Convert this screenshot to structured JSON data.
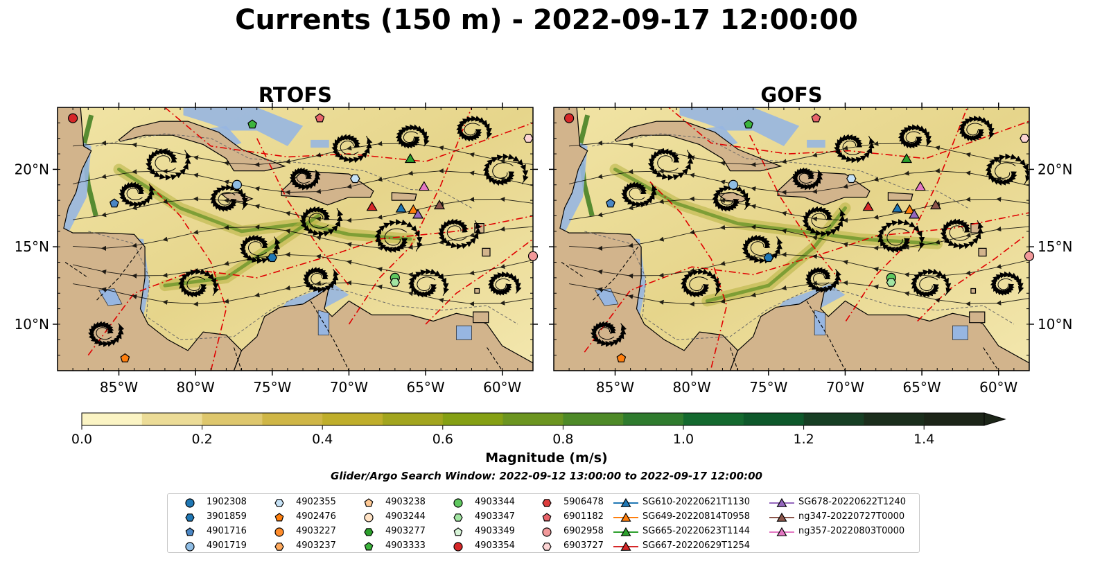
{
  "title": "Currents (150 m) - 2022-09-17 12:00:00",
  "panels": [
    {
      "name": "RTOFS"
    },
    {
      "name": "GOFS"
    }
  ],
  "map_axes": {
    "lon_ticks": [
      "85°W",
      "80°W",
      "75°W",
      "70°W",
      "65°W",
      "60°W"
    ],
    "lon_values": [
      -85,
      -80,
      -75,
      -70,
      -65,
      -60
    ],
    "lat_ticks": [
      "20°N",
      "15°N",
      "10°N"
    ],
    "lat_values": [
      20,
      15,
      10
    ],
    "lon_range": [
      -89,
      -58
    ],
    "lat_range": [
      7,
      24
    ]
  },
  "colors": {
    "land": "#d2b48c",
    "lakes": "#97b6e1",
    "eez": "#e00000",
    "streamline": "#000000"
  },
  "colorbar": {
    "label": "Magnitude (m/s)",
    "ticks": [
      "0.0",
      "0.2",
      "0.4",
      "0.6",
      "0.8",
      "1.0",
      "1.2",
      "1.4"
    ],
    "tick_values": [
      0,
      0.2,
      0.4,
      0.6,
      0.8,
      1.0,
      1.2,
      1.4
    ],
    "range": [
      0,
      1.5
    ],
    "extend": "max",
    "colors": [
      "#fbf4c4",
      "#ecdc97",
      "#dec76d",
      "#cfb646",
      "#bfae2b",
      "#a2a51e",
      "#85a014",
      "#6c9520",
      "#4e8a28",
      "#2f7b2e",
      "#14692f",
      "#0e582b",
      "#173f24",
      "#1b2e1c",
      "#1c2518"
    ]
  },
  "search_window": "Glider/Argo Search Window: 2022-09-12 13:00:00 to 2022-09-17 12:00:00",
  "chart_data": {
    "type": "map",
    "variable": "Currents (150 m)",
    "panels": [
      "RTOFS",
      "GOFS"
    ],
    "platforms": [
      {
        "id": "1902308",
        "marker": "circle",
        "color": "#1f77b4",
        "lon": null,
        "lat": null
      },
      {
        "id": "3901859",
        "marker": "hexagon",
        "color": "#1f77b4",
        "lon": -75.0,
        "lat": 14.3
      },
      {
        "id": "4901716",
        "marker": "pentagon",
        "color": "#4a86c4",
        "lon": -85.3,
        "lat": 17.8
      },
      {
        "id": "4901719",
        "marker": "circle",
        "color": "#8fbde5",
        "lon": -77.3,
        "lat": 19.0
      },
      {
        "id": "4902355",
        "marker": "hexagon",
        "color": "#c6e2f6",
        "lon": -69.6,
        "lat": 19.4
      },
      {
        "id": "4902476",
        "marker": "pentagon",
        "color": "#ff7f0e",
        "lon": -84.6,
        "lat": 7.8
      },
      {
        "id": "4903227",
        "marker": "circle",
        "color": "#ff8c2b",
        "lon": null,
        "lat": null
      },
      {
        "id": "4903237",
        "marker": "hexagon",
        "color": "#ffa95c",
        "lon": null,
        "lat": null
      },
      {
        "id": "4903238",
        "marker": "pentagon",
        "color": "#ffc994",
        "lon": null,
        "lat": null
      },
      {
        "id": "4903244",
        "marker": "circle",
        "color": "#ffe2c4",
        "lon": null,
        "lat": null
      },
      {
        "id": "4903277",
        "marker": "hexagon",
        "color": "#2ca02c",
        "lon": null,
        "lat": null
      },
      {
        "id": "4903333",
        "marker": "pentagon",
        "color": "#3cb43c",
        "lon": -76.3,
        "lat": 22.9
      },
      {
        "id": "4903344",
        "marker": "circle",
        "color": "#5fc85f",
        "lon": -67.0,
        "lat": 13.0
      },
      {
        "id": "4903347",
        "marker": "hexagon",
        "color": "#a2e5a2",
        "lon": -67.0,
        "lat": 12.7
      },
      {
        "id": "4903349",
        "marker": "pentagon",
        "color": "#d8f5d8",
        "lon": null,
        "lat": null
      },
      {
        "id": "4903354",
        "marker": "circle",
        "color": "#d62728",
        "lon": -88.0,
        "lat": 23.3
      },
      {
        "id": "5906478",
        "marker": "hexagon",
        "color": "#dc3c3c",
        "lon": null,
        "lat": null
      },
      {
        "id": "6901182",
        "marker": "pentagon",
        "color": "#e8646a",
        "lon": -71.9,
        "lat": 23.3
      },
      {
        "id": "6902958",
        "marker": "circle",
        "color": "#f2999a",
        "lon": -58.0,
        "lat": 14.4
      },
      {
        "id": "6903727",
        "marker": "hexagon",
        "color": "#fcd4d4",
        "lon": -58.3,
        "lat": 22.0
      },
      {
        "id": "SG610-20220621T1130",
        "marker": "triangle",
        "color": "#1f77b4",
        "lon": -66.6,
        "lat": 17.5
      },
      {
        "id": "SG649-20220814T0958",
        "marker": "triangle",
        "color": "#ff7f0e",
        "lon": -65.8,
        "lat": 17.4
      },
      {
        "id": "SG665-20220623T1144",
        "marker": "triangle",
        "color": "#2ca02c",
        "lon": -66.0,
        "lat": 20.7
      },
      {
        "id": "SG667-20220629T1254",
        "marker": "triangle",
        "color": "#d62728",
        "lon": -68.5,
        "lat": 17.6
      },
      {
        "id": "SG678-20220622T1240",
        "marker": "triangle",
        "color": "#9467bd",
        "lon": -65.5,
        "lat": 17.1
      },
      {
        "id": "ng347-20220727T0000",
        "marker": "triangle",
        "color": "#8c564b",
        "lon": -64.1,
        "lat": 17.7
      },
      {
        "id": "ng357-20220803T0000",
        "marker": "triangle",
        "color": "#e377c2",
        "lon": -65.1,
        "lat": 18.9
      }
    ]
  }
}
